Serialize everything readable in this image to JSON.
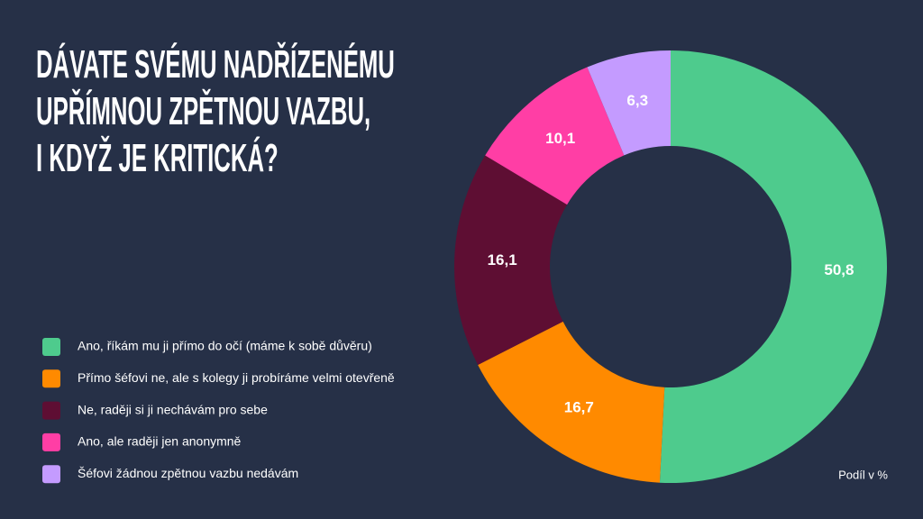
{
  "chart_data": {
    "type": "donut",
    "title": [
      "DÁVATE SVÉMU NADŘÍZENÉMU",
      "UPŘÍMNOU ZPĚTNOU VAZBU,",
      "I KDYŽ JE KRITICKÁ?"
    ],
    "categories": [
      "Ano, říkám mu ji přímo do očí (máme k sobě důvěru)",
      "Přímo šéfovi ne, ale s kolegy ji probíráme velmi otevřeně",
      "Ne, raději si ji nechávám pro sebe",
      "Ano, ale raději jen anonymně",
      "Šéfovi žádnou zpětnou vazbu nedávám"
    ],
    "values": [
      50.8,
      16.7,
      16.1,
      10.1,
      6.3
    ],
    "value_labels": [
      "50,8",
      "16,7",
      "16,1",
      "10,1",
      "6,3"
    ],
    "colors": [
      "#4ecb8d",
      "#ff8a00",
      "#5e0e33",
      "#ff3ea5",
      "#c49bff"
    ],
    "note": "Podíl v %"
  }
}
